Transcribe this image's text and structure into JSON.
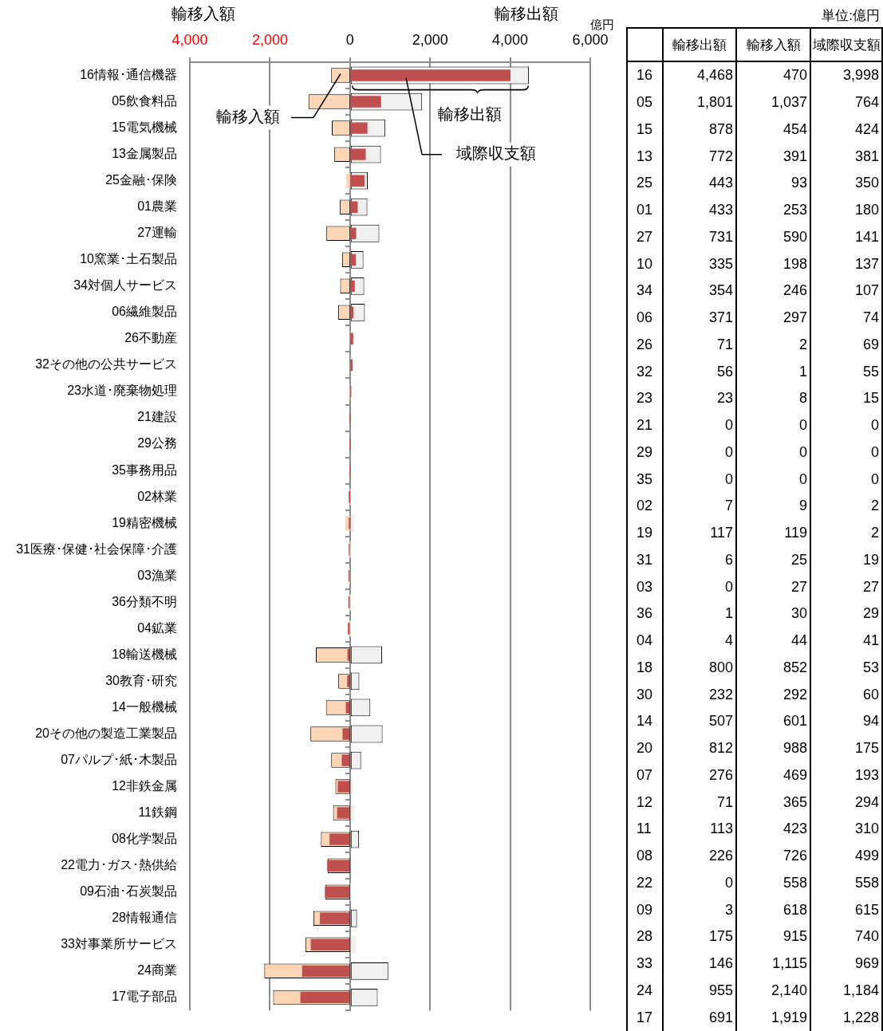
{
  "chart_data": {
    "type": "bar",
    "orientation": "horizontal",
    "xlabel": "輸移出額",
    "x2label": "輸移入額",
    "grid": "x",
    "categories": [
      "16情報･通信機器",
      "05飲食料品",
      "15電気機械",
      "13金属製品",
      "25金融･保険",
      "01農業",
      "27運輸",
      "10窯業･土石製品",
      "34対個人サービス",
      "06繊維製品",
      "26不動産",
      "32その他の公共サービス",
      "23水道･廃棄物処理",
      "21建設",
      "29公務",
      "35事務用品",
      "02林業",
      "19精密機械",
      "31医療･保健･社会保障･介護",
      "03漁業",
      "36分類不明",
      "04鉱業",
      "18輸送機械",
      "30教育･研究",
      "14一般機械",
      "20その他の製造工業製品",
      "07パルプ･紙･木製品",
      "12非鉄金属",
      "11鉄鋼",
      "08化学製品",
      "22電力･ガス･熱供給",
      "09石油･石炭製品",
      "28情報通信",
      "33対事業所サービス",
      "24商業",
      "17電子部品"
    ],
    "y2_categories": [
      "16",
      "05",
      "15",
      "13",
      "25",
      "01",
      "27",
      "10",
      "34",
      "06",
      "26",
      "32",
      "23",
      "21",
      "29",
      "35",
      "02",
      "19",
      "31",
      "03",
      "36",
      "04",
      "18",
      "30",
      "14",
      "20",
      "07",
      "12",
      "11",
      "08",
      "22",
      "09",
      "28",
      "33",
      "24",
      "17"
    ],
    "series": [
      {
        "name": "輸移出額",
        "color": "#f0f0f0",
        "values": [
          4468,
          1801,
          878,
          772,
          443,
          433,
          731,
          335,
          354,
          371,
          71,
          56,
          23,
          0,
          0,
          0,
          7,
          117,
          6,
          0,
          1,
          4,
          800,
          232,
          507,
          812,
          276,
          71,
          113,
          226,
          0,
          3,
          175,
          146,
          955,
          691
        ],
        "value_labels": [
          "4,468",
          "1,801",
          "878",
          "772",
          "443",
          "433",
          "731",
          "335",
          "354",
          "371",
          "71",
          "56",
          "23",
          "0",
          "0",
          "0",
          "7",
          "117",
          "6",
          "0",
          "1",
          "4",
          "800",
          "232",
          "507",
          "812",
          "276",
          "71",
          "113",
          "226",
          "0",
          "3",
          "175",
          "146",
          "955",
          "691"
        ]
      },
      {
        "name": "輸移入額",
        "color": "#fcd5b5",
        "axis": "x2",
        "values": [
          470,
          1037,
          454,
          391,
          93,
          253,
          590,
          198,
          246,
          297,
          2,
          1,
          8,
          0,
          0,
          0,
          9,
          119,
          25,
          27,
          30,
          44,
          852,
          292,
          601,
          988,
          469,
          365,
          423,
          726,
          558,
          618,
          915,
          1115,
          2140,
          1919
        ],
        "value_labels": [
          "470",
          "1,037",
          "454",
          "391",
          "93",
          "253",
          "590",
          "198",
          "246",
          "297",
          "2",
          "1",
          "8",
          "0",
          "0",
          "0",
          "9",
          "119",
          "25",
          "27",
          "30",
          "44",
          "852",
          "292",
          "601",
          "988",
          "469",
          "365",
          "423",
          "726",
          "558",
          "618",
          "915",
          "1,115",
          "2,140",
          "1,919"
        ]
      },
      {
        "name": "域際収支額",
        "color": "#c0504d",
        "values": [
          3998,
          764,
          424,
          381,
          350,
          180,
          141,
          137,
          107,
          74,
          69,
          55,
          15,
          0,
          0,
          0,
          2,
          2,
          19,
          27,
          29,
          41,
          53,
          60,
          94,
          175,
          193,
          294,
          310,
          499,
          558,
          615,
          740,
          969,
          1184,
          1228
        ],
        "base": [
          null,
          null,
          null,
          null,
          null,
          null,
          null,
          null,
          null,
          null,
          null,
          null,
          null,
          null,
          null,
          null,
          -2,
          -2,
          -19,
          -27,
          -29,
          -41,
          -53,
          -60,
          -94,
          -175,
          -193,
          -294,
          -310,
          -499,
          -558,
          -615,
          -740,
          -969,
          -1184,
          -1228
        ],
        "value_labels": [
          "3,998",
          "764",
          "424",
          "381",
          "350",
          "180",
          "141",
          "137",
          "107",
          "74",
          "69",
          "55",
          "15",
          "0",
          "0",
          "0",
          "2",
          "2",
          "19",
          "27",
          "29",
          "41",
          "53",
          "60",
          "94",
          "175",
          "193",
          "294",
          "310",
          "499",
          "558",
          "615",
          "740",
          "969",
          "1,184",
          "1,228"
        ]
      }
    ],
    "xlim": [
      -4000,
      6000
    ],
    "xticks": [
      0,
      {
        "value": 2000,
        "label": "2,000"
      },
      {
        "value": 4000,
        "label": "4,000"
      },
      {
        "value": 6000,
        "label": "6,000"
      }
    ],
    "x2lim": [
      4000,
      -6000
    ],
    "x2ticks": [
      {
        "value": 4000,
        "label": "4,000"
      },
      {
        "value": 2000,
        "label": "2,000"
      }
    ],
    "annotations": [
      "億円",
      "単位:億円"
    ]
  }
}
